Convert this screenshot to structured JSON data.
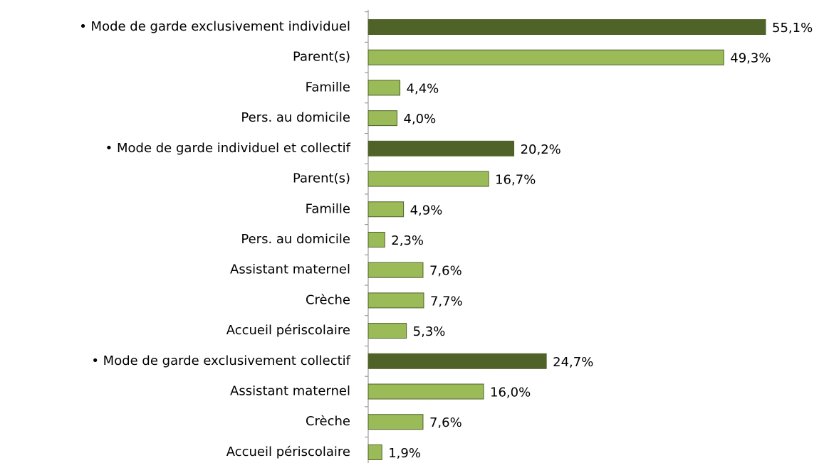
{
  "chart_data": {
    "type": "hbar",
    "categories": [
      "• Mode de garde exclusivement individuel",
      "Parent(s)",
      "Famille",
      "Pers. au domicile",
      "• Mode de garde individuel et collectif",
      "Parent(s)",
      "Famille",
      "Pers. au domicile",
      "Assistant maternel",
      "Crèche",
      "Accueil périscolaire",
      "• Mode de garde exclusivement collectif",
      "Assistant maternel",
      "Crèche",
      "Accueil périscolaire"
    ],
    "values": [
      55.1,
      49.3,
      4.4,
      4.0,
      20.2,
      16.7,
      4.9,
      2.3,
      7.6,
      7.7,
      5.3,
      24.7,
      16.0,
      7.6,
      1.9
    ],
    "value_labels": [
      "55,1%",
      "49,3%",
      "4,4%",
      "4,0%",
      "20,2%",
      "16,7%",
      "4,9%",
      "2,3%",
      "7,6%",
      "7,7%",
      "5,3%",
      "24,7%",
      "16,0%",
      "7,6%",
      "1,9%"
    ],
    "colors": [
      "#4f6228",
      "#9bbb59",
      "#9bbb59",
      "#9bbb59",
      "#4f6228",
      "#9bbb59",
      "#9bbb59",
      "#9bbb59",
      "#9bbb59",
      "#9bbb59",
      "#9bbb59",
      "#4f6228",
      "#9bbb59",
      "#9bbb59",
      "#9bbb59"
    ]
  }
}
